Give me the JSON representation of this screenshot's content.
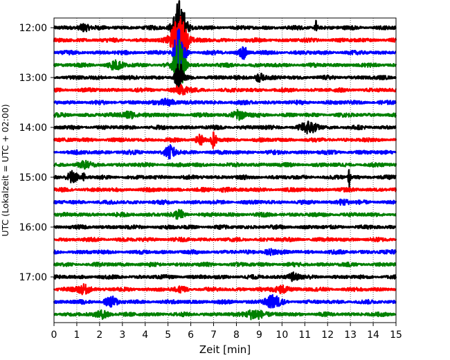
{
  "chart_data": {
    "type": "line",
    "title": "",
    "xlabel": "Zeit  [min]",
    "ylabel": "UTC (Lokalzeit = UTC + 02:00)",
    "xlim": [
      0,
      15
    ],
    "x_ticks": [
      "0",
      "1",
      "2",
      "3",
      "4",
      "5",
      "6",
      "7",
      "8",
      "9",
      "10",
      "11",
      "12",
      "13",
      "14",
      "15"
    ],
    "y_tick_labels": [
      "12:00",
      "13:00",
      "14:00",
      "15:00",
      "16:00",
      "17:00"
    ],
    "grid": "vertical dotted lines at each minute",
    "legend": "none",
    "trace_interval_minutes": 15,
    "traces": [
      {
        "start_utc": "12:00",
        "color": "#000000",
        "events": [
          {
            "minute": 5.5,
            "amp": 2.2,
            "dur": 0.5
          },
          {
            "minute": 11.5,
            "amp": 0.6,
            "dur": 0.1
          },
          {
            "minute": 1.3,
            "amp": 0.3,
            "dur": 0.4
          }
        ]
      },
      {
        "start_utc": "12:15",
        "color": "#ff0000",
        "events": [
          {
            "minute": 5.5,
            "amp": 2.0,
            "dur": 0.6
          }
        ]
      },
      {
        "start_utc": "12:30",
        "color": "#0000ff",
        "events": [
          {
            "minute": 5.5,
            "amp": 2.0,
            "dur": 0.4
          },
          {
            "minute": 8.3,
            "amp": 0.45,
            "dur": 0.3
          }
        ]
      },
      {
        "start_utc": "12:45",
        "color": "#008000",
        "events": [
          {
            "minute": 5.5,
            "amp": 2.0,
            "dur": 0.4
          },
          {
            "minute": 2.7,
            "amp": 0.3,
            "dur": 0.6
          }
        ]
      },
      {
        "start_utc": "13:00",
        "color": "#000000",
        "events": [
          {
            "minute": 5.5,
            "amp": 1.3,
            "dur": 0.3
          },
          {
            "minute": 9.0,
            "amp": 0.35,
            "dur": 0.3
          }
        ]
      },
      {
        "start_utc": "13:15",
        "color": "#ff0000",
        "events": [
          {
            "minute": 5.6,
            "amp": 0.3,
            "dur": 0.6
          }
        ]
      },
      {
        "start_utc": "13:30",
        "color": "#0000ff",
        "events": [
          {
            "minute": 5.0,
            "amp": 0.3,
            "dur": 0.5
          }
        ]
      },
      {
        "start_utc": "13:45",
        "color": "#008000",
        "events": [
          {
            "minute": 3.3,
            "amp": 0.3,
            "dur": 0.5
          },
          {
            "minute": 8.1,
            "amp": 0.35,
            "dur": 0.5
          }
        ]
      },
      {
        "start_utc": "14:00",
        "color": "#000000",
        "events": [
          {
            "minute": 11.2,
            "amp": 0.45,
            "dur": 0.6
          }
        ]
      },
      {
        "start_utc": "14:15",
        "color": "#ff0000",
        "events": [
          {
            "minute": 7.0,
            "amp": 0.6,
            "dur": 0.2
          },
          {
            "minute": 6.4,
            "amp": 0.35,
            "dur": 0.3
          }
        ]
      },
      {
        "start_utc": "14:30",
        "color": "#0000ff",
        "events": [
          {
            "minute": 5.1,
            "amp": 0.5,
            "dur": 0.4
          }
        ]
      },
      {
        "start_utc": "14:45",
        "color": "#008000",
        "events": [
          {
            "minute": 1.3,
            "amp": 0.2,
            "dur": 0.5
          }
        ]
      },
      {
        "start_utc": "15:00",
        "color": "#000000",
        "events": [
          {
            "minute": 0.8,
            "amp": 0.45,
            "dur": 0.4
          },
          {
            "minute": 1.3,
            "amp": 0.4,
            "dur": 0.1
          },
          {
            "minute": 12.95,
            "amp": 0.8,
            "dur": 0.08
          }
        ]
      },
      {
        "start_utc": "15:15",
        "color": "#ff0000",
        "events": [
          {
            "minute": 7.5,
            "amp": 0.15,
            "dur": 0.4
          }
        ]
      },
      {
        "start_utc": "15:30",
        "color": "#0000ff",
        "events": [
          {
            "minute": 12.7,
            "amp": 0.2,
            "dur": 0.4
          }
        ]
      },
      {
        "start_utc": "15:45",
        "color": "#008000",
        "events": [
          {
            "minute": 5.5,
            "amp": 0.3,
            "dur": 0.4
          }
        ]
      },
      {
        "start_utc": "16:00",
        "color": "#000000",
        "events": []
      },
      {
        "start_utc": "16:15",
        "color": "#ff0000",
        "events": []
      },
      {
        "start_utc": "16:30",
        "color": "#0000ff",
        "events": [
          {
            "minute": 9.5,
            "amp": 0.2,
            "dur": 0.5
          }
        ]
      },
      {
        "start_utc": "16:45",
        "color": "#008000",
        "events": []
      },
      {
        "start_utc": "17:00",
        "color": "#000000",
        "events": [
          {
            "minute": 10.5,
            "amp": 0.3,
            "dur": 0.4
          }
        ]
      },
      {
        "start_utc": "17:15",
        "color": "#ff0000",
        "events": [
          {
            "minute": 1.3,
            "amp": 0.35,
            "dur": 0.5
          },
          {
            "minute": 5.6,
            "amp": 0.2,
            "dur": 0.4
          },
          {
            "minute": 10.0,
            "amp": 0.3,
            "dur": 0.5
          }
        ]
      },
      {
        "start_utc": "17:30",
        "color": "#0000ff",
        "events": [
          {
            "minute": 2.5,
            "amp": 0.35,
            "dur": 0.5
          },
          {
            "minute": 9.6,
            "amp": 0.45,
            "dur": 0.6
          }
        ]
      },
      {
        "start_utc": "17:45",
        "color": "#008000",
        "events": [
          {
            "minute": 2.2,
            "amp": 0.3,
            "dur": 0.5
          },
          {
            "minute": 8.8,
            "amp": 0.45,
            "dur": 0.6
          }
        ]
      }
    ]
  }
}
